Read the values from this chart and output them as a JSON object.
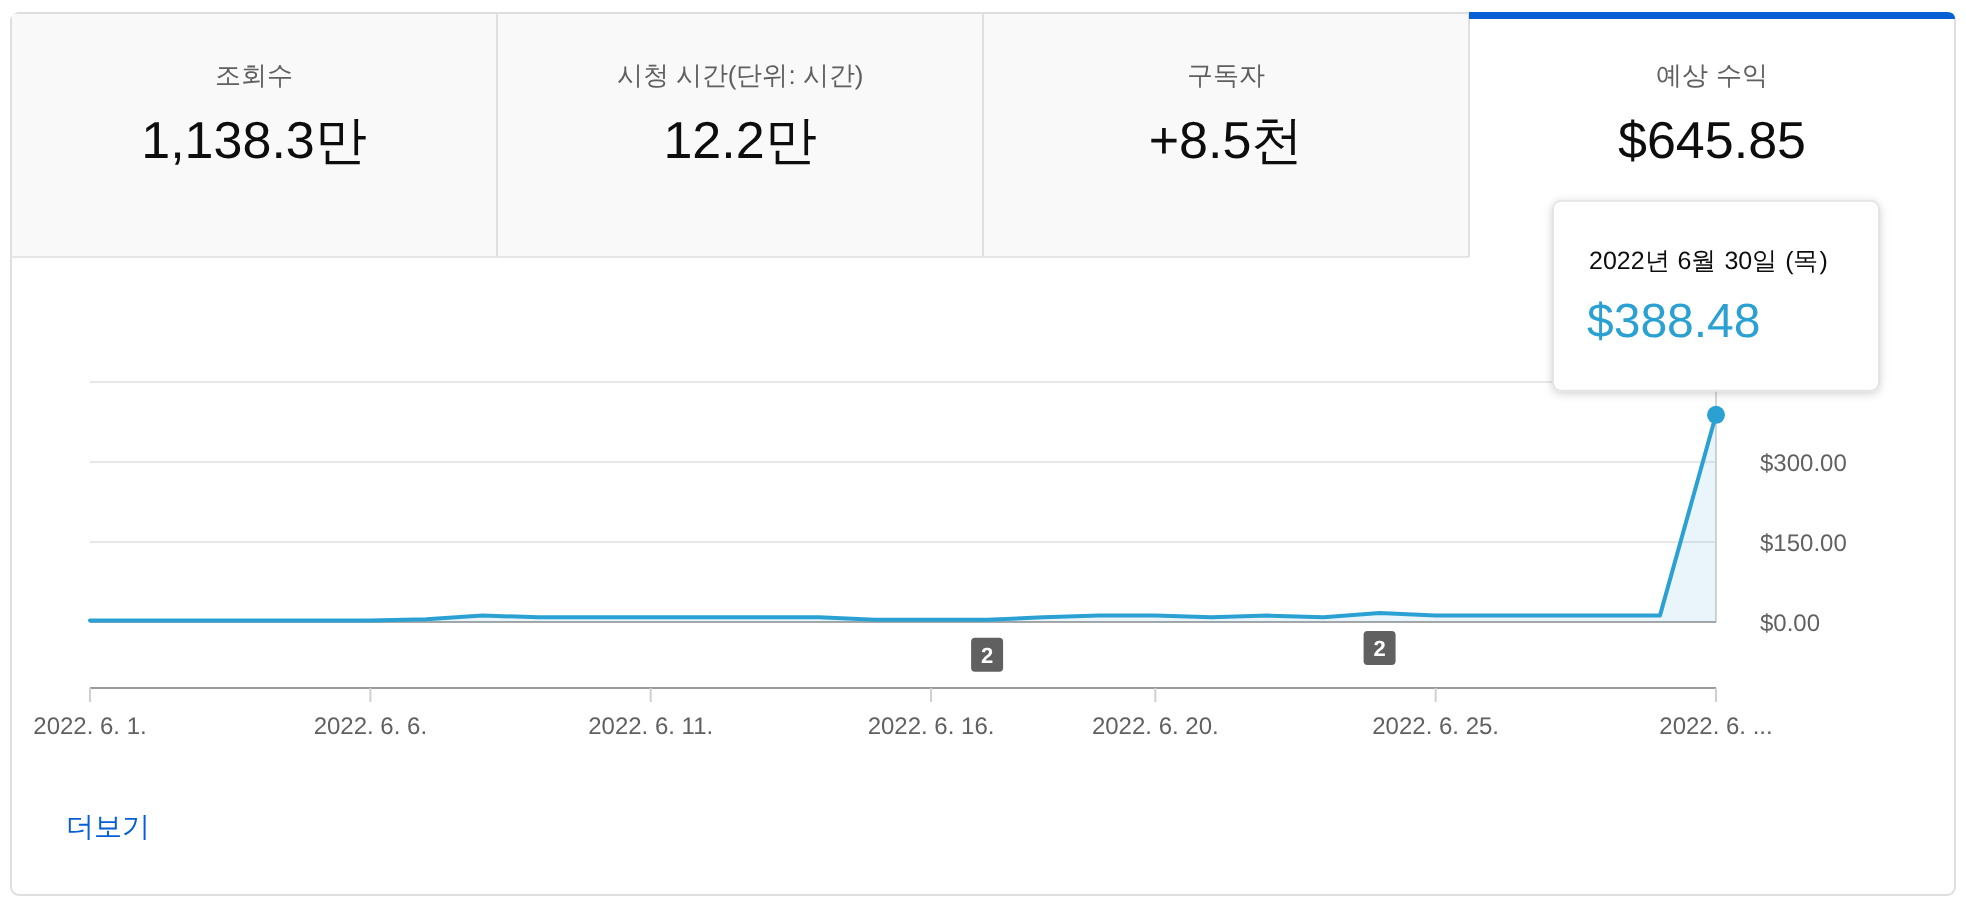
{
  "chart_data": [
    {
      "type": "other",
      "title": "조회수",
      "annotations": [
        "1,138.3만"
      ]
    },
    {
      "type": "other",
      "title": "시청 시간(단위: 시간)",
      "annotations": [
        "12.2만"
      ]
    },
    {
      "type": "other",
      "title": "구독자",
      "annotations": [
        "+8.5천"
      ]
    },
    {
      "type": "other",
      "title": "예상 수익",
      "annotations": [
        "$645.85"
      ]
    },
    {
      "type": "area",
      "x": [
        "2022-06-01",
        "2022-06-02",
        "2022-06-03",
        "2022-06-04",
        "2022-06-05",
        "2022-06-06",
        "2022-06-07",
        "2022-06-08",
        "2022-06-09",
        "2022-06-10",
        "2022-06-11",
        "2022-06-12",
        "2022-06-13",
        "2022-06-14",
        "2022-06-15",
        "2022-06-16",
        "2022-06-17",
        "2022-06-18",
        "2022-06-19",
        "2022-06-20",
        "2022-06-21",
        "2022-06-22",
        "2022-06-23",
        "2022-06-24",
        "2022-06-25",
        "2022-06-26",
        "2022-06-27",
        "2022-06-28",
        "2022-06-29",
        "2022-06-30"
      ],
      "series": [
        {
          "color": "#2ba1d3",
          "values": [
            3,
            3,
            3,
            3,
            3,
            3,
            5,
            12,
            9,
            9,
            9,
            9,
            9,
            9,
            4,
            4,
            4,
            9,
            12,
            12,
            9,
            12,
            9,
            17,
            12,
            12,
            12,
            12,
            12,
            388.48
          ]
        }
      ],
      "xlim": [
        "2022-06-01",
        "2022-06-30"
      ],
      "xticks": [
        {
          "value": "2022-06-01",
          "label": "2022. 6. 1."
        },
        {
          "value": "2022-06-06",
          "label": "2022. 6. 6."
        },
        {
          "value": "2022-06-11",
          "label": "2022. 6. 11."
        },
        {
          "value": "2022-06-16",
          "label": "2022. 6. 16."
        },
        {
          "value": "2022-06-20",
          "label": "2022. 6. 20."
        },
        {
          "value": "2022-06-25",
          "label": "2022. 6. 25."
        },
        {
          "value": "2022-06-30",
          "label": "2022. 6. ..."
        }
      ],
      "ylim": [
        0,
        450
      ],
      "yticks": [
        {
          "value": 0,
          "label": "$0.00"
        },
        {
          "value": 150,
          "label": "$150.00"
        },
        {
          "value": 300,
          "label": "$300.00"
        },
        {
          "value": 450,
          "label": null
        }
      ],
      "grid": "y",
      "annotations": [
        "2022년 6월 30일 (목)",
        {
          "text": "$388.48",
          "x": "2022-06-30",
          "y": 388.48
        },
        {
          "text": "2",
          "x": "2022-06-17",
          "y": 4
        },
        {
          "text": "2",
          "x": "2022-06-24",
          "y": 17
        },
        "더보기"
      ]
    }
  ]
}
